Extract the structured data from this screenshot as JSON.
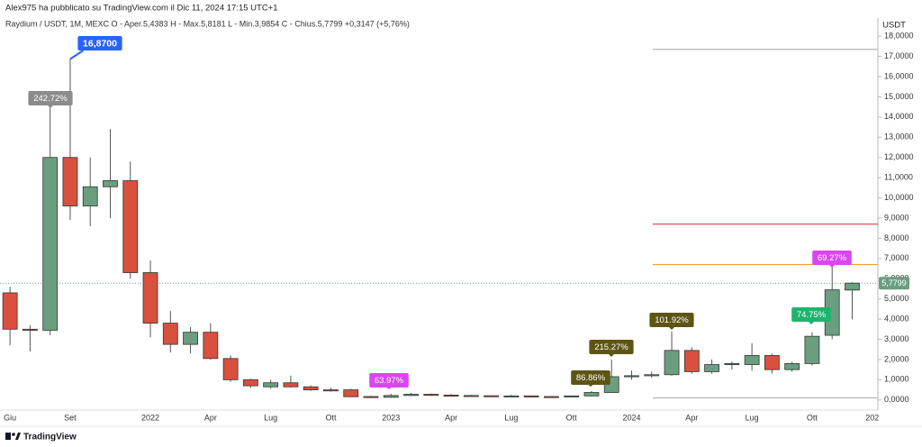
{
  "header": {
    "author_line": "Alex975 ha pubblicato su TradingView.com il Dic 11, 2024 17:15 UTC+1"
  },
  "chart_data": {
    "type": "candlestick",
    "legend_line": "Raydium / USDT, 1M, MEXC  O - Aper.5,4383  H - Max.5,8181  L - Min.3,9854  C - Chius.5,7799  +0,3147 (+5,76%)",
    "y_axis_label": "USDT",
    "categories": [
      "Giu",
      null,
      null,
      "Set",
      null,
      null,
      null,
      "2022",
      null,
      null,
      "Apr",
      null,
      null,
      "Lug",
      null,
      null,
      "Ott",
      null,
      null,
      "2023",
      null,
      null,
      "Apr",
      null,
      null,
      "Lug",
      null,
      null,
      "Ott",
      null,
      null,
      "2024",
      null,
      null,
      "Apr",
      null,
      null,
      "Lug",
      null,
      null,
      "Ott",
      null,
      null,
      "202"
    ],
    "open": [
      5.3,
      3.5,
      3.45,
      12.0,
      9.6,
      10.55,
      10.85,
      6.3,
      3.8,
      2.75,
      3.35,
      2.05,
      1.0,
      0.65,
      0.85,
      0.65,
      0.5,
      0.5,
      0.17,
      0.13,
      0.22,
      0.28,
      0.24,
      0.22,
      0.21,
      0.18,
      0.2,
      0.17,
      0.16,
      0.2,
      0.37,
      1.15,
      1.2,
      1.25,
      2.45,
      1.4,
      1.75,
      1.75,
      2.2,
      1.5,
      1.8,
      3.2,
      5.4383,
      null
    ],
    "high": [
      5.6,
      3.7,
      14.8,
      16.87,
      12.0,
      13.4,
      11.8,
      6.9,
      4.4,
      3.6,
      3.8,
      2.2,
      1.05,
      1.0,
      1.2,
      0.72,
      0.6,
      0.55,
      0.2,
      0.3,
      0.35,
      0.32,
      0.3,
      0.25,
      0.23,
      0.25,
      0.22,
      0.19,
      0.22,
      0.45,
      2.0,
      1.45,
      1.4,
      3.4,
      2.6,
      2.0,
      1.9,
      2.8,
      2.3,
      1.9,
      3.35,
      6.7,
      5.8181,
      null
    ],
    "low": [
      2.7,
      2.4,
      3.2,
      8.9,
      8.6,
      9.0,
      6.0,
      3.1,
      2.35,
      2.3,
      2.0,
      0.9,
      0.6,
      0.55,
      0.6,
      0.45,
      0.42,
      0.14,
      0.1,
      0.12,
      0.2,
      0.2,
      0.2,
      0.19,
      0.15,
      0.16,
      0.15,
      0.15,
      0.15,
      0.18,
      0.35,
      1.0,
      1.1,
      1.2,
      1.3,
      1.3,
      1.5,
      1.45,
      1.3,
      1.4,
      1.7,
      3.0,
      3.9854,
      null
    ],
    "close": [
      3.5,
      3.45,
      12.0,
      9.6,
      10.55,
      10.85,
      6.3,
      3.8,
      2.75,
      3.35,
      2.05,
      1.0,
      0.7,
      0.85,
      0.65,
      0.5,
      0.45,
      0.16,
      0.13,
      0.22,
      0.28,
      0.24,
      0.22,
      0.21,
      0.18,
      0.2,
      0.17,
      0.16,
      0.2,
      0.37,
      1.15,
      1.2,
      1.25,
      2.45,
      1.4,
      1.75,
      1.8,
      2.2,
      1.5,
      1.8,
      3.15,
      5.45,
      5.7799,
      null
    ],
    "up_color": "#6a9e7f",
    "down_color": "#d9503f",
    "ylim": [
      -0.5,
      18.9
    ],
    "yticks": [
      {
        "value": 0,
        "label": "0,0000"
      },
      {
        "value": 1,
        "label": "1,0000"
      },
      {
        "value": 2,
        "label": "2,0000"
      },
      {
        "value": 3,
        "label": "3,0000"
      },
      {
        "value": 4,
        "label": "4,0000"
      },
      {
        "value": 5,
        "label": "5,0000"
      },
      {
        "value": 6,
        "label": "6,0000"
      },
      {
        "value": 7,
        "label": "7,0000"
      },
      {
        "value": 8,
        "label": "8,0000"
      },
      {
        "value": 9,
        "label": "9,0000"
      },
      {
        "value": 10,
        "label": "10,0000"
      },
      {
        "value": 11,
        "label": "11,0000"
      },
      {
        "value": 12,
        "label": "12,0000"
      },
      {
        "value": 13,
        "label": "13,0000"
      },
      {
        "value": 14,
        "label": "14,0000"
      },
      {
        "value": 15,
        "label": "15,0000"
      },
      {
        "value": 16,
        "label": "16,0000"
      },
      {
        "value": 17,
        "label": "17,0000"
      },
      {
        "value": 18,
        "label": "18,0000"
      }
    ],
    "grid": false,
    "price_tag": {
      "value": 5.7799,
      "label": "5,7799"
    },
    "hlines": [
      {
        "value": 17.35,
        "color": "#b5b5b5"
      },
      {
        "value": 8.7,
        "color": "#d0454a"
      },
      {
        "value": 6.7,
        "color": "#f0a030"
      },
      {
        "value": 0.1,
        "color": "#b5b5b5"
      }
    ],
    "annotations": [
      {
        "text": "16,8700",
        "color": "#2962ff"
      },
      {
        "text": "242.72%",
        "color": "#8c8c8c"
      },
      {
        "text": "63.97%",
        "color": "#d946ef"
      },
      {
        "text": "86.86%",
        "color": "#5e5414"
      },
      {
        "text": "215.27%",
        "color": "#5e5414"
      },
      {
        "text": "101.92%",
        "color": "#5e5414"
      },
      {
        "text": "74.75%",
        "color": "#1fb36e"
      },
      {
        "text": "69.27%",
        "color": "#d946ef"
      }
    ]
  },
  "footer": {
    "brand": "TradingView"
  }
}
